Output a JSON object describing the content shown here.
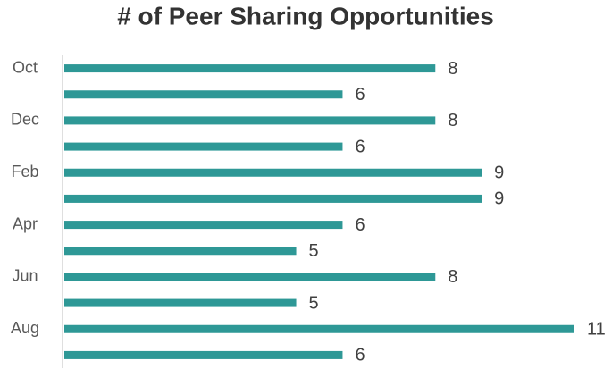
{
  "chart_data": {
    "type": "bar",
    "orientation": "horizontal",
    "title": "# of Peer Sharing Opportunities",
    "categories": [
      "Oct",
      null,
      "Dec",
      null,
      "Feb",
      null,
      "Apr",
      null,
      "Jun",
      null,
      "Aug",
      null
    ],
    "values": [
      8,
      6,
      8,
      6,
      9,
      9,
      6,
      5,
      8,
      5,
      11,
      6
    ],
    "color": "#2e9896"
  }
}
